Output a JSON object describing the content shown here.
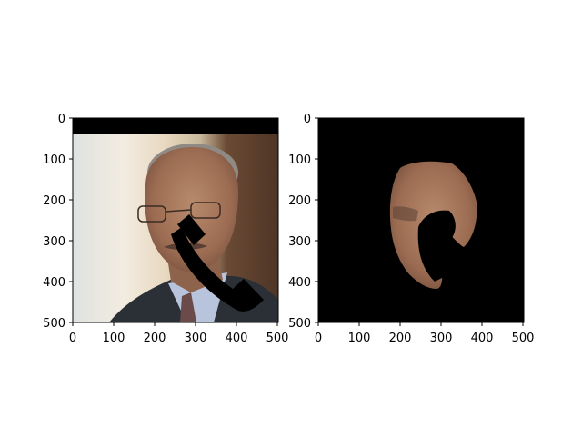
{
  "figure": {
    "panels": [
      {
        "id": "original-with-occlusion",
        "xticks": [
          "0",
          "100",
          "200",
          "300",
          "400",
          "500"
        ],
        "yticks": [
          "0",
          "100",
          "200",
          "300",
          "400",
          "500"
        ]
      },
      {
        "id": "segmented-face",
        "xticks": [
          "0",
          "100",
          "200",
          "300",
          "400",
          "500"
        ],
        "yticks": [
          "0",
          "100",
          "200",
          "300",
          "400",
          "500"
        ]
      }
    ]
  },
  "colors": {
    "background": "#ffffff",
    "occluder": "#000000",
    "mask_background": "#000000",
    "skin": "#a87a60",
    "suit": "#2b2f36",
    "shirt": "#b8c3dc",
    "wall_left": "#e8e3d8",
    "wall_right": "#5b3e2c"
  }
}
